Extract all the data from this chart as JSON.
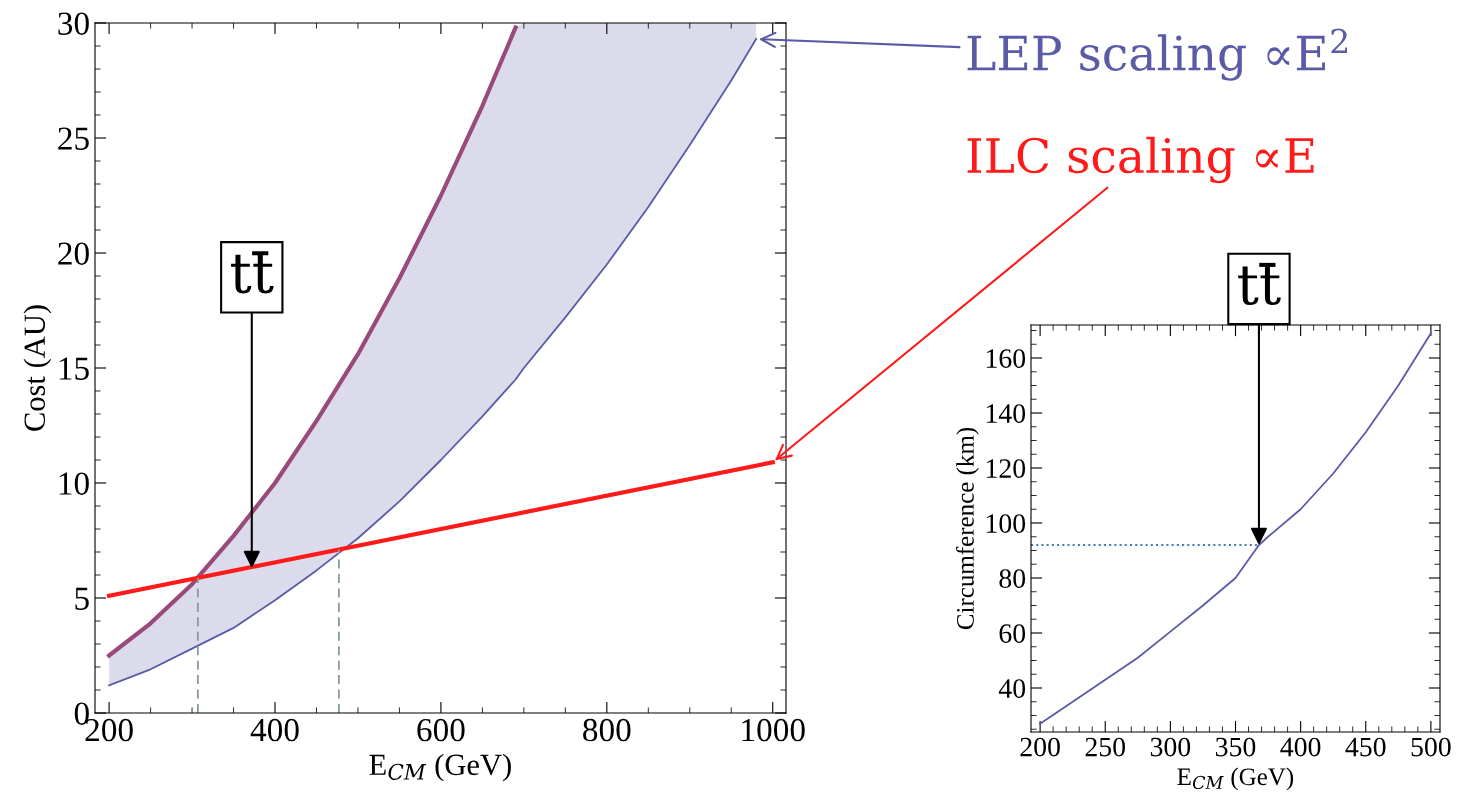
{
  "chart_data": [
    {
      "type": "line",
      "xlabel": "E$_{CM}$ (GeV)",
      "ylabel": "Cost (AU)",
      "xlim": [
        183,
        1016
      ],
      "ylim": [
        0,
        30
      ],
      "xticks": [
        200,
        400,
        600,
        800,
        1000
      ],
      "yticks": [
        0,
        5,
        10,
        15,
        20,
        25,
        30
      ],
      "series": [
        {
          "color": "#9a4a7a",
          "x": [
            200,
            250,
            300,
            350,
            400,
            450,
            500,
            550,
            600,
            650,
            690
          ],
          "values": [
            2.5,
            3.9,
            5.6,
            7.7,
            10.0,
            12.7,
            15.6,
            18.9,
            22.5,
            26.4,
            29.8
          ]
        },
        {
          "name": "LEP scaling ∝E$^{2}$",
          "color": "#5a5aa6",
          "x": [
            200,
            250,
            300,
            350,
            400,
            450,
            500,
            550,
            600,
            650,
            690,
            700,
            750,
            800,
            850,
            900,
            950,
            980
          ],
          "values": [
            1.2,
            1.9,
            2.8,
            3.7,
            4.9,
            6.2,
            7.6,
            9.2,
            11.0,
            12.9,
            14.5,
            15.0,
            17.2,
            19.5,
            22.0,
            24.7,
            27.5,
            29.3
          ],
          "lower": [
            1.2,
            1.9,
            2.8,
            3.7,
            4.9,
            6.2,
            7.6,
            9.2,
            11.0,
            12.9,
            14.5,
            15.0,
            17.2,
            19.5,
            22.0,
            24.7,
            27.5,
            29.3
          ],
          "upper": [
            2.5,
            3.9,
            5.6,
            7.7,
            10.0,
            12.7,
            15.6,
            18.9,
            22.5,
            26.4,
            29.8,
            30,
            30,
            30,
            30,
            30,
            30,
            30
          ]
        },
        {
          "name": "ILC scaling ∝E",
          "color": "#ff1a1a",
          "x": [
            200,
            1000
          ],
          "values": [
            5.1,
            10.9
          ]
        }
      ],
      "ref_lines": [
        {
          "axis": "x",
          "value": 307,
          "color": "#8a9a9a",
          "line_style": "dashed"
        },
        {
          "axis": "x",
          "value": 477,
          "color": "#8a9a9a",
          "line_style": "dashed"
        }
      ],
      "annotations": [
        {
          "text": "tt̄",
          "x": 372,
          "y": 6.3
        }
      ]
    },
    {
      "type": "line",
      "xlabel": "E$_{CM}$ (GeV)",
      "ylabel": "Circumference (km)",
      "xlim": [
        193,
        507
      ],
      "ylim": [
        24,
        172
      ],
      "xticks": [
        200,
        250,
        300,
        350,
        400,
        450,
        500
      ],
      "yticks": [
        40,
        60,
        80,
        100,
        120,
        140,
        160
      ],
      "series": [
        {
          "color": "#5a5aa6",
          "x": [
            200,
            225,
            250,
            275,
            300,
            325,
            350,
            368,
            375,
            400,
            425,
            450,
            475,
            500
          ],
          "values": [
            27,
            35,
            43,
            51,
            60.5,
            70,
            80,
            92,
            95,
            105,
            118,
            133,
            150,
            169
          ]
        }
      ],
      "ref_lines": [
        {
          "axis": "y",
          "value": 92,
          "color": "#4a7ab8",
          "line_style": "dotted"
        }
      ],
      "annotations": [
        {
          "text": "tt̄",
          "x": 368,
          "y": 92
        }
      ]
    }
  ]
}
